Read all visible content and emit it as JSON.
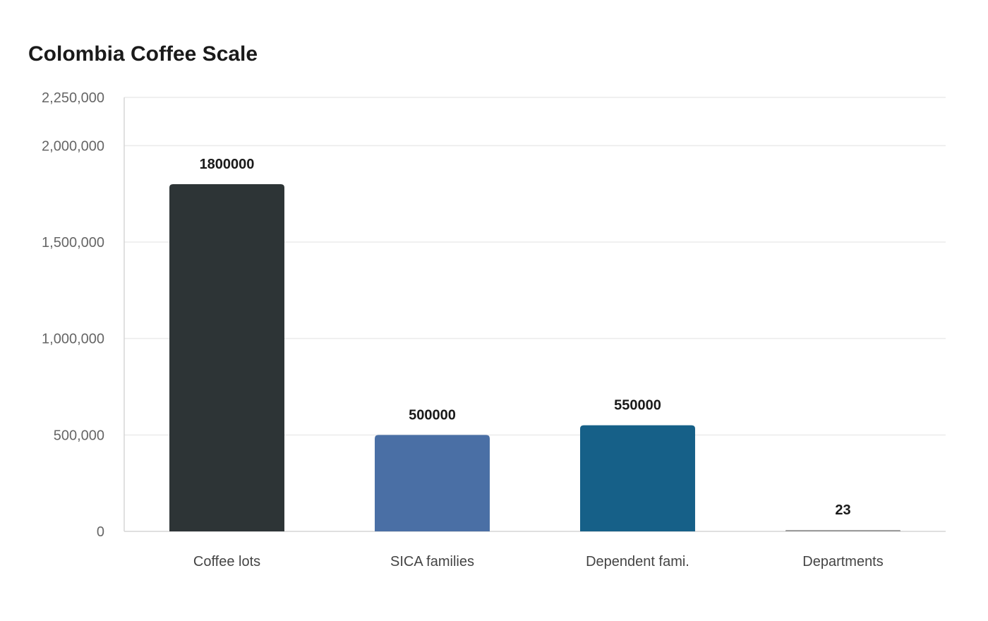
{
  "chart_data": {
    "type": "bar",
    "title": "Colombia Coffee Scale",
    "xlabel": "",
    "ylabel": "",
    "categories": [
      "Coffee lots",
      "SICA families",
      "Dependent fami.",
      "Departments"
    ],
    "values": [
      1800000,
      500000,
      550000,
      23
    ],
    "value_labels": [
      "1800000",
      "500000",
      "550000",
      "23"
    ],
    "bar_colors": [
      "#2d3436",
      "#4a6fa5",
      "#166088",
      "#9e9e9e"
    ],
    "ylim": [
      0,
      2250000
    ],
    "yticks": [
      0,
      500000,
      1000000,
      1500000,
      2000000,
      2250000
    ],
    "ytick_labels": [
      "0",
      "500,000",
      "1,000,000",
      "1,500,000",
      "2,000,000",
      "2,250,000"
    ],
    "grid": true,
    "legend": "none"
  }
}
